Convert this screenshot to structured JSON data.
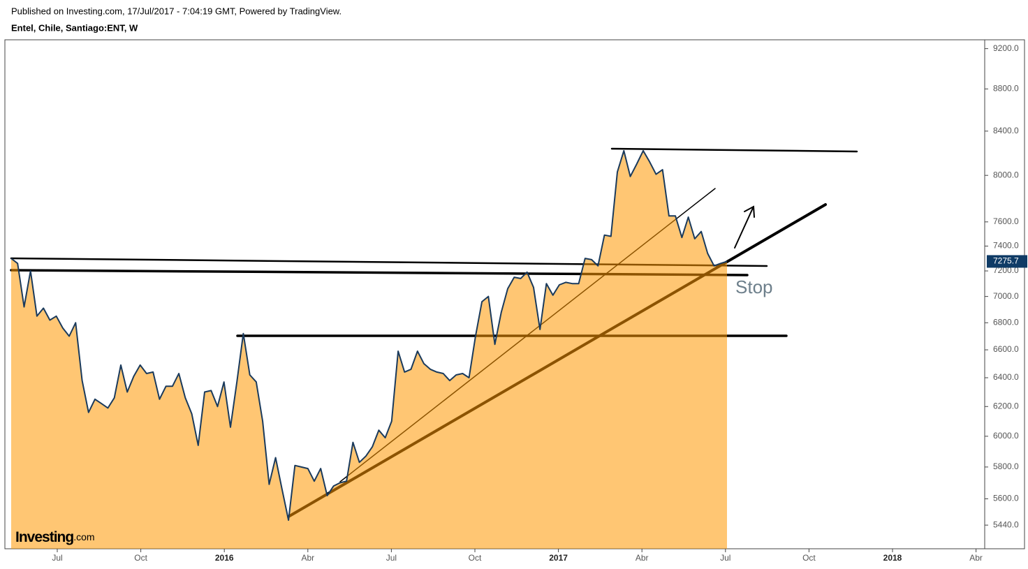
{
  "header": {
    "published": "Published on Investing.com, 17/Jul/2017 - 7:04:19 GMT, Powered by TradingView.",
    "symbol": "Entel, Chile, Santiago:ENT, W"
  },
  "logo": {
    "brand": "Investing",
    "suffix": ".com"
  },
  "chart_data": {
    "type": "area",
    "title": "Entel, Chile, Santiago:ENT, W",
    "log_scale": true,
    "grid": false,
    "color": "#ff9800",
    "line_color": "#1a3a5c",
    "annotations": [
      "Stop"
    ],
    "xticks": [
      "Jul",
      "Oct",
      "2016",
      "Abr",
      "Jul",
      "Oct",
      "2017",
      "Abr",
      "Jul",
      "Oct",
      "2018",
      "Abr"
    ],
    "ylim": [
      5300,
      9290
    ],
    "yticks": [
      {
        "value": 5440,
        "label": "5440.0"
      },
      {
        "value": 5600,
        "label": "5600.0"
      },
      {
        "value": 5800,
        "label": "5800.0"
      },
      {
        "value": 6000,
        "label": "6000.0"
      },
      {
        "value": 6200,
        "label": "6200.0"
      },
      {
        "value": 6400,
        "label": "6400.0"
      },
      {
        "value": 6600,
        "label": "6600.0"
      },
      {
        "value": 6800,
        "label": "6800.0"
      },
      {
        "value": 7000,
        "label": "7000.0"
      },
      {
        "value": 7200,
        "label": "7200.0"
      },
      {
        "value": 7400,
        "label": "7400.0"
      },
      {
        "value": 7600,
        "label": "7600.0"
      },
      {
        "value": 8000,
        "label": "8000.0"
      },
      {
        "value": 8400,
        "label": "8400.0"
      },
      {
        "value": 8800,
        "label": "8800.0"
      },
      {
        "value": 9200,
        "label": "9200.0"
      }
    ],
    "values": [
      7300,
      7260,
      6920,
      7200,
      6850,
      6910,
      6820,
      6850,
      6760,
      6700,
      6800,
      6380,
      6160,
      6250,
      6220,
      6190,
      6260,
      6490,
      6300,
      6410,
      6490,
      6430,
      6440,
      6250,
      6340,
      6340,
      6430,
      6260,
      6150,
      5940,
      6300,
      6310,
      6200,
      6370,
      6060,
      6370,
      6720,
      6420,
      6370,
      6100,
      5690,
      5860,
      5660,
      5470,
      5810,
      5800,
      5790,
      5710,
      5790,
      5620,
      5680,
      5700,
      5710,
      5960,
      5830,
      5870,
      5930,
      6040,
      5990,
      6100,
      6590,
      6440,
      6460,
      6590,
      6500,
      6460,
      6440,
      6430,
      6380,
      6420,
      6430,
      6400,
      6700,
      6960,
      7000,
      6640,
      6880,
      7060,
      7150,
      7140,
      7190,
      7070,
      6750,
      7100,
      7010,
      7090,
      7110,
      7100,
      7100,
      7300,
      7290,
      7240,
      7490,
      7480,
      8030,
      8220,
      7990,
      8100,
      8220,
      8120,
      8010,
      8050,
      7650,
      7650,
      7470,
      7640,
      7460,
      7520,
      7340,
      7240,
      7260,
      7275.7
    ]
  }
}
